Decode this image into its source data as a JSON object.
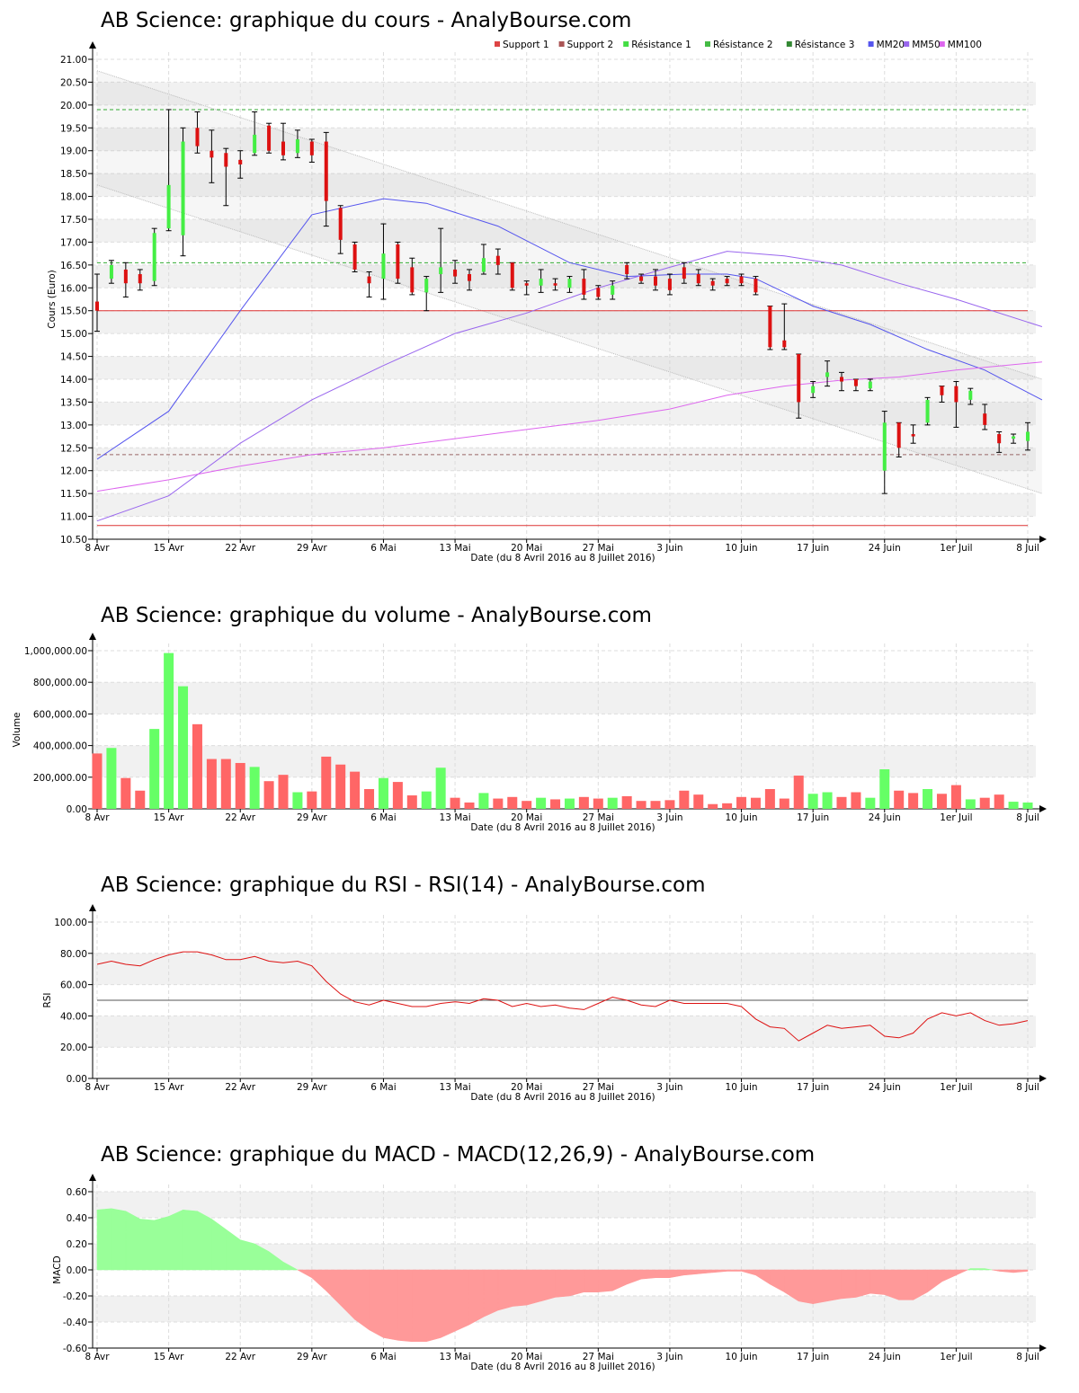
{
  "colors": {
    "up": "#44ee44",
    "down": "#dd1111",
    "grid_band": "#f1f1f1",
    "grid_line": "#dddddd",
    "mm20": "#5555ee",
    "mm50": "#9966ee",
    "mm100": "#dd66ee",
    "support": "#dd3333",
    "resistance": "#33aa33",
    "support2": "#996666",
    "macd_pos": "#99ff99",
    "macd_neg": "#ff9999"
  },
  "x_axis": {
    "ticks": [
      "8 Avr",
      "15 Avr",
      "22 Avr",
      "29 Avr",
      "6 Mai",
      "13 Mai",
      "20 Mai",
      "27 Mai",
      "3 Juin",
      "10 Juin",
      "17 Juin",
      "24 Juin",
      "1er Juil",
      "8 Juil"
    ],
    "label": "Date (du 8 Avril 2016 au 8 Juillet 2016)"
  },
  "price_chart": {
    "title": "AB Science: graphique du cours - AnalyBourse.com",
    "ylabel": "Cours (Euro)",
    "legend": [
      {
        "label": "Support 1",
        "color": "#dd4444"
      },
      {
        "label": "Support 2",
        "color": "#aa5555"
      },
      {
        "label": "Résistance 1",
        "color": "#44dd44"
      },
      {
        "label": "Résistance 2",
        "color": "#44bb44"
      },
      {
        "label": "Résistance 3",
        "color": "#338833"
      },
      {
        "label": "MM20",
        "color": "#5555ee"
      },
      {
        "label": "MM50",
        "color": "#9966ee"
      },
      {
        "label": "MM100",
        "color": "#dd66ee"
      }
    ]
  },
  "volume_chart": {
    "title": "AB Science: graphique du volume - AnalyBourse.com",
    "ylabel": "Volume"
  },
  "rsi_chart": {
    "title": "AB Science: graphique du RSI - RSI(14) - AnalyBourse.com",
    "ylabel": "RSI"
  },
  "macd_chart": {
    "title": "AB Science: graphique du MACD - MACD(12,26,9) - AnalyBourse.com",
    "ylabel": "MACD"
  },
  "chart_data": [
    {
      "type": "candlestick",
      "title": "AB Science: graphique du cours - AnalyBourse.com",
      "ylabel": "Cours (Euro)",
      "xlabel": "Date (du 8 Avril 2016 au 8 Juillet 2016)",
      "ylim": [
        10.5,
        21.0
      ],
      "ytick_step": 0.5,
      "candles": [
        [
          15.7,
          15.5,
          16.3,
          15.05
        ],
        [
          16.2,
          16.5,
          16.6,
          16.1
        ],
        [
          16.4,
          16.1,
          16.55,
          15.8
        ],
        [
          16.3,
          16.1,
          16.4,
          15.95
        ],
        [
          16.15,
          17.2,
          17.3,
          16.05
        ],
        [
          17.3,
          18.25,
          19.9,
          17.25
        ],
        [
          17.15,
          19.2,
          19.5,
          16.7
        ],
        [
          19.5,
          19.1,
          19.85,
          18.95
        ],
        [
          19.0,
          18.85,
          19.45,
          18.3
        ],
        [
          18.95,
          18.65,
          19.05,
          17.8
        ],
        [
          18.8,
          18.7,
          19.0,
          18.4
        ],
        [
          18.95,
          19.35,
          19.85,
          18.9
        ],
        [
          19.55,
          19.0,
          19.6,
          18.95
        ],
        [
          19.2,
          18.9,
          19.6,
          18.8
        ],
        [
          18.95,
          19.25,
          19.45,
          18.85
        ],
        [
          19.2,
          18.9,
          19.25,
          18.75
        ],
        [
          19.2,
          17.9,
          19.4,
          17.35
        ],
        [
          17.75,
          17.05,
          17.8,
          16.75
        ],
        [
          16.95,
          16.4,
          17.0,
          16.35
        ],
        [
          16.25,
          16.1,
          16.35,
          15.8
        ],
        [
          16.2,
          16.75,
          17.4,
          15.75
        ],
        [
          16.95,
          16.2,
          17.0,
          16.1
        ],
        [
          16.45,
          15.9,
          16.65,
          15.85
        ],
        [
          15.9,
          16.2,
          16.25,
          15.5
        ],
        [
          16.3,
          16.45,
          17.3,
          15.9
        ],
        [
          16.4,
          16.25,
          16.6,
          16.1
        ],
        [
          16.3,
          16.15,
          16.4,
          15.95
        ],
        [
          16.35,
          16.65,
          16.95,
          16.3
        ],
        [
          16.7,
          16.5,
          16.85,
          16.3
        ],
        [
          16.55,
          16.0,
          16.55,
          15.95
        ],
        [
          16.1,
          16.05,
          16.15,
          15.85
        ],
        [
          16.05,
          16.2,
          16.4,
          15.9
        ],
        [
          16.1,
          16.05,
          16.2,
          15.95
        ],
        [
          16.0,
          16.2,
          16.25,
          15.9
        ],
        [
          16.2,
          15.85,
          16.4,
          15.75
        ],
        [
          16.0,
          15.8,
          16.05,
          15.75
        ],
        [
          15.85,
          16.05,
          16.15,
          15.75
        ],
        [
          16.5,
          16.3,
          16.55,
          16.2
        ],
        [
          16.25,
          16.15,
          16.3,
          16.1
        ],
        [
          16.25,
          16.05,
          16.4,
          15.95
        ],
        [
          16.2,
          15.95,
          16.3,
          15.85
        ],
        [
          16.45,
          16.2,
          16.55,
          16.1
        ],
        [
          16.3,
          16.1,
          16.4,
          16.05
        ],
        [
          16.15,
          16.05,
          16.2,
          15.95
        ],
        [
          16.2,
          16.1,
          16.25,
          16.05
        ],
        [
          16.25,
          16.1,
          16.3,
          16.05
        ],
        [
          16.2,
          15.9,
          16.25,
          15.85
        ],
        [
          15.6,
          14.7,
          15.6,
          14.65
        ],
        [
          14.85,
          14.7,
          15.65,
          14.65
        ],
        [
          14.55,
          13.5,
          14.55,
          13.15
        ],
        [
          13.7,
          13.85,
          13.95,
          13.6
        ],
        [
          14.05,
          14.15,
          14.4,
          13.85
        ],
        [
          14.05,
          13.95,
          14.15,
          13.75
        ],
        [
          14.0,
          13.85,
          14.0,
          13.75
        ],
        [
          13.8,
          13.95,
          14.0,
          13.75
        ],
        [
          12.0,
          13.05,
          13.3,
          11.5
        ],
        [
          13.05,
          12.5,
          13.05,
          12.3
        ],
        [
          12.8,
          12.75,
          13.0,
          12.6
        ],
        [
          13.05,
          13.55,
          13.6,
          13.0
        ],
        [
          13.85,
          13.65,
          13.85,
          13.5
        ],
        [
          13.85,
          13.5,
          13.95,
          12.95
        ],
        [
          13.55,
          13.75,
          13.8,
          13.45
        ],
        [
          13.25,
          13.0,
          13.45,
          12.9
        ],
        [
          12.8,
          12.6,
          12.85,
          12.4
        ],
        [
          12.7,
          12.75,
          12.8,
          12.6
        ],
        [
          12.65,
          12.85,
          13.05,
          12.45
        ]
      ],
      "moving_averages": {
        "MM20": [
          [
            0,
            12.25
          ],
          [
            5,
            13.3
          ],
          [
            10,
            15.5
          ],
          [
            15,
            17.6
          ],
          [
            20,
            17.95
          ],
          [
            23,
            17.85
          ],
          [
            28,
            17.35
          ],
          [
            33,
            16.55
          ],
          [
            37,
            16.25
          ],
          [
            41,
            16.3
          ],
          [
            44,
            16.3
          ],
          [
            46,
            16.2
          ],
          [
            50,
            15.6
          ],
          [
            54,
            15.2
          ],
          [
            58,
            14.65
          ],
          [
            62,
            14.2
          ],
          [
            66,
            13.55
          ]
        ],
        "MM50": [
          [
            0,
            10.9
          ],
          [
            5,
            11.45
          ],
          [
            10,
            12.6
          ],
          [
            15,
            13.55
          ],
          [
            20,
            14.3
          ],
          [
            25,
            15.0
          ],
          [
            30,
            15.45
          ],
          [
            35,
            16.0
          ],
          [
            40,
            16.45
          ],
          [
            44,
            16.8
          ],
          [
            48,
            16.7
          ],
          [
            52,
            16.5
          ],
          [
            56,
            16.1
          ],
          [
            60,
            15.75
          ],
          [
            66,
            15.15
          ]
        ],
        "MM100": [
          [
            0,
            11.55
          ],
          [
            5,
            11.8
          ],
          [
            10,
            12.1
          ],
          [
            15,
            12.35
          ],
          [
            20,
            12.5
          ],
          [
            25,
            12.7
          ],
          [
            30,
            12.9
          ],
          [
            35,
            13.1
          ],
          [
            40,
            13.35
          ],
          [
            44,
            13.65
          ],
          [
            48,
            13.85
          ],
          [
            52,
            13.98
          ],
          [
            56,
            14.05
          ],
          [
            60,
            14.2
          ],
          [
            66,
            14.38
          ]
        ]
      },
      "levels": {
        "support_1": 15.5,
        "support_2": 12.35,
        "support_3": 10.8,
        "resistance_1": 16.55,
        "resistance_2": 19.9
      },
      "trend_channel": {
        "upper": [
          [
            0,
            20.75
          ],
          [
            66,
            14.0
          ]
        ],
        "lower": [
          [
            0,
            18.25
          ],
          [
            66,
            11.5
          ]
        ]
      }
    },
    {
      "type": "bar",
      "title": "AB Science: graphique du volume - AnalyBourse.com",
      "ylabel": "Volume",
      "xlabel": "Date (du 8 Avril 2016 au 8 Juillet 2016)",
      "ylim": [
        0,
        1000000
      ],
      "ytick_step": 200000,
      "values": [
        350000,
        385000,
        195000,
        115000,
        505000,
        985000,
        775000,
        535000,
        315000,
        315000,
        290000,
        265000,
        175000,
        215000,
        105000,
        110000,
        330000,
        280000,
        235000,
        125000,
        195000,
        170000,
        85000,
        110000,
        260000,
        70000,
        40000,
        100000,
        65000,
        75000,
        50000,
        70000,
        60000,
        65000,
        75000,
        65000,
        70000,
        80000,
        50000,
        50000,
        55000,
        115000,
        90000,
        30000,
        35000,
        75000,
        70000,
        125000,
        65000,
        210000,
        95000,
        105000,
        75000,
        105000,
        70000,
        250000,
        115000,
        100000,
        125000,
        95000,
        150000,
        60000,
        70000,
        90000,
        45000,
        40000
      ]
    },
    {
      "type": "line",
      "title": "AB Science: graphique du RSI - RSI(14) - AnalyBourse.com",
      "ylabel": "RSI",
      "xlabel": "Date (du 8 Avril 2016 au 8 Juillet 2016)",
      "ylim": [
        0,
        100
      ],
      "ytick_step": 20,
      "reference_line": 50,
      "values": [
        73,
        75,
        73,
        72,
        76,
        79,
        81,
        81,
        79,
        76,
        76,
        78,
        75,
        74,
        75,
        72,
        62,
        54,
        49,
        47,
        50,
        48,
        46,
        46,
        48,
        49,
        48,
        51,
        50,
        46,
        48,
        46,
        47,
        45,
        44,
        48,
        52,
        50,
        47,
        46,
        50,
        48,
        48,
        48,
        48,
        46,
        38,
        33,
        32,
        24,
        29,
        34,
        32,
        33,
        34,
        27,
        26,
        29,
        38,
        42,
        40,
        42,
        37,
        34,
        35,
        37
      ]
    },
    {
      "type": "area",
      "title": "AB Science: graphique du MACD - MACD(12,26,9) - AnalyBourse.com",
      "ylabel": "MACD",
      "xlabel": "Date (du 8 Avril 2016 au 8 Juillet 2016)",
      "ylim": [
        -0.6,
        0.6
      ],
      "ytick_step": 0.2,
      "values": [
        0.46,
        0.47,
        0.45,
        0.39,
        0.38,
        0.41,
        0.46,
        0.45,
        0.39,
        0.31,
        0.23,
        0.2,
        0.14,
        0.06,
        0.0,
        -0.06,
        -0.16,
        -0.27,
        -0.38,
        -0.46,
        -0.52,
        -0.54,
        -0.55,
        -0.55,
        -0.52,
        -0.47,
        -0.42,
        -0.36,
        -0.31,
        -0.28,
        -0.27,
        -0.24,
        -0.21,
        -0.2,
        -0.17,
        -0.17,
        -0.16,
        -0.11,
        -0.07,
        -0.06,
        -0.06,
        -0.04,
        -0.03,
        -0.02,
        -0.01,
        -0.01,
        -0.04,
        -0.11,
        -0.17,
        -0.24,
        -0.26,
        -0.24,
        -0.22,
        -0.21,
        -0.18,
        -0.19,
        -0.23,
        -0.23,
        -0.17,
        -0.09,
        -0.04,
        0.01,
        0.01,
        -0.01,
        -0.02,
        -0.01
      ]
    }
  ]
}
